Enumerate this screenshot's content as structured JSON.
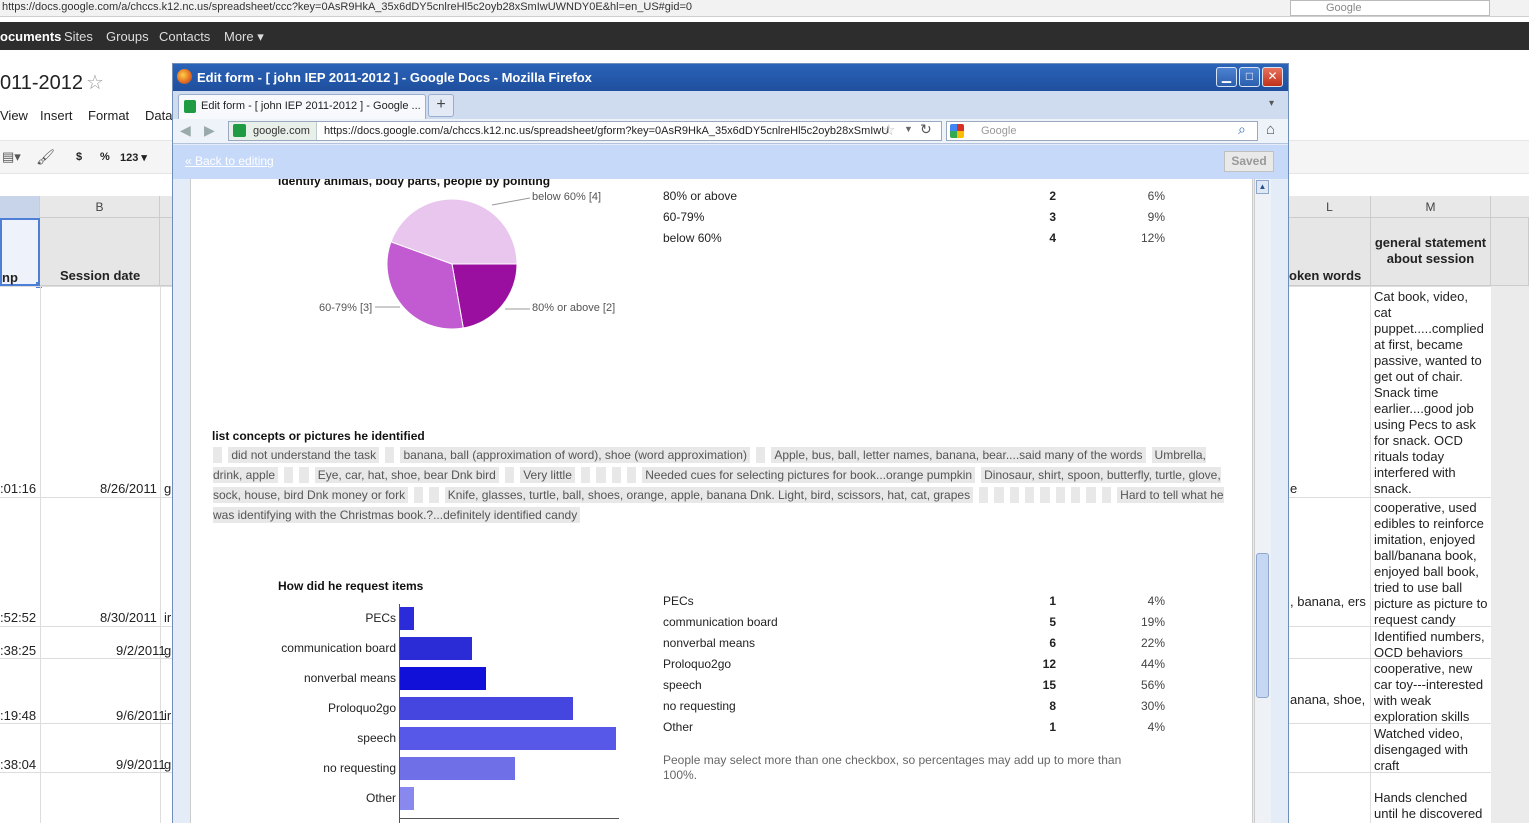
{
  "background": {
    "url": "https://docs.google.com/a/chccs.k12.nc.us/spreadsheet/ccc?key=0AsR9HkA_35x6dDY5cnlreHl5c2oyb28xSmIwUWNDY0E&hl=en_US#gid=0",
    "search_placeholder": "Google",
    "nav": [
      "ocuments",
      "Sites",
      "Groups",
      "Contacts",
      "More ▾"
    ],
    "doc_title": "011-2012",
    "menu": [
      "View",
      "Insert",
      "Format",
      "Data"
    ],
    "toolbar": {
      "currency": "$",
      "percent": "%",
      "number": "123 ▾"
    },
    "columns": [
      "B",
      "L",
      "M"
    ],
    "headers": {
      "col_a": "np",
      "col_b": "Session date",
      "col_l": "oken words",
      "col_m": "general statement about session"
    },
    "rows": [
      {
        "time": ":01:16",
        "date": "8/26/2011",
        "c": "g",
        "l": "e",
        "m": "Cat book, video, cat puppet.....complied at first, became passive, wanted to get out of chair. Snack time earlier....good job using Pecs to ask for snack. OCD rituals today interfered with snack."
      },
      {
        "time": ":52:52",
        "date": "8/30/2011",
        "c": "ir",
        "l": ", banana, ers",
        "m": "cooperative, used edibles to reinforce imitation, enjoyed ball/banana book, enjoyed ball book, tried to use ball picture as picture to request candy"
      },
      {
        "time": ":38:25",
        "date": "9/2/2011",
        "c": "g",
        "l": "",
        "m": "Identified numbers, OCD behaviors"
      },
      {
        "time": ":19:48",
        "date": "9/6/2011",
        "c": "ir",
        "l": "anana, shoe,",
        "m": "cooperative, new car toy---interested with weak exploration skills"
      },
      {
        "time": ":38:04",
        "date": "9/9/2011",
        "c": "g",
        "l": "",
        "m": "Watched video, disengaged with craft"
      },
      {
        "time": "",
        "date": "",
        "c": "",
        "l": "",
        "m": "Hands clenched until he discovered"
      }
    ]
  },
  "window": {
    "title": "Edit form - [ john IEP 2011-2012 ] - Google Docs - Mozilla Firefox",
    "tab_label": "Edit form - [ john IEP 2011-2012 ] - Google ...",
    "new_tab": "+",
    "url_host": "google.com",
    "url": "https://docs.google.com/a/chccs.k12.nc.us/spreadsheet/gform?key=0AsR9HkA_35x6dDY5cnlreHl5c2oyb28xSmIwU",
    "search_placeholder": "Google",
    "back_link": "« Back to editing",
    "saved_label": "Saved"
  },
  "q1": {
    "title": "identify animals, body parts, people by pointing",
    "stats": [
      {
        "label": "80% or above",
        "count": "2",
        "pct": "6%"
      },
      {
        "label": "60-79%",
        "count": "3",
        "pct": "9%"
      },
      {
        "label": "below 60%",
        "count": "4",
        "pct": "12%"
      }
    ],
    "pie_labels": {
      "below": "below 60% [4]",
      "mid": "60-79% [3]",
      "high": "80% or above [2]"
    }
  },
  "q2": {
    "title": "list concepts or pictures he identified",
    "answers": [
      "did not understand the task",
      "banana, ball (approximation of word), shoe (word approximation)",
      "Apple, bus, ball, letter names, banana, bear....said many of the words",
      "Umbrella, drink, apple",
      "Eye, car, hat, shoe, bear Dnk bird",
      "Very little",
      "Needed cues for selecting pictures for book...orange pumpkin",
      "Dinosaur, shirt, spoon, butterfly, turtle, glove, sock, house, bird Dnk money or fork",
      "Knife, glasses, turtle, ball, shoes, orange, apple, banana Dnk. Light, bird, scissors, hat, cat, grapes",
      "Hard to tell what he was identifying with the Christmas book.?...definitely identified candy"
    ]
  },
  "q3": {
    "title": "How did he request items",
    "stats": [
      {
        "label": "PECs",
        "count": "1",
        "pct": "4%"
      },
      {
        "label": "communication board",
        "count": "5",
        "pct": "19%"
      },
      {
        "label": "nonverbal means",
        "count": "6",
        "pct": "22%"
      },
      {
        "label": "Proloquo2go",
        "count": "12",
        "pct": "44%"
      },
      {
        "label": "speech",
        "count": "15",
        "pct": "56%"
      },
      {
        "label": "no requesting",
        "count": "8",
        "pct": "30%"
      },
      {
        "label": "Other",
        "count": "1",
        "pct": "4%"
      }
    ],
    "note": "People may select more than one checkbox, so percentages may add up to more than 100%."
  },
  "chart_data": [
    {
      "type": "pie",
      "title": "identify animals, body parts, people by pointing",
      "categories": [
        "80% or above",
        "60-79%",
        "below 60%"
      ],
      "values": [
        2,
        3,
        4
      ],
      "colors": [
        "#9a0ea0",
        "#c25ad1",
        "#e8c6ee"
      ]
    },
    {
      "type": "bar",
      "orientation": "horizontal",
      "title": "How did he request items",
      "categories": [
        "PECs",
        "communication board",
        "nonverbal means",
        "Proloquo2go",
        "speech",
        "no requesting",
        "Other"
      ],
      "values": [
        1,
        5,
        6,
        12,
        15,
        8,
        1
      ],
      "xlim": [
        0,
        15
      ],
      "colors": [
        "#2b2bd9",
        "#2c2cd6",
        "#1010d8",
        "#4545e0",
        "#5757e8",
        "#6f6fe8",
        "#8888ee"
      ]
    }
  ]
}
